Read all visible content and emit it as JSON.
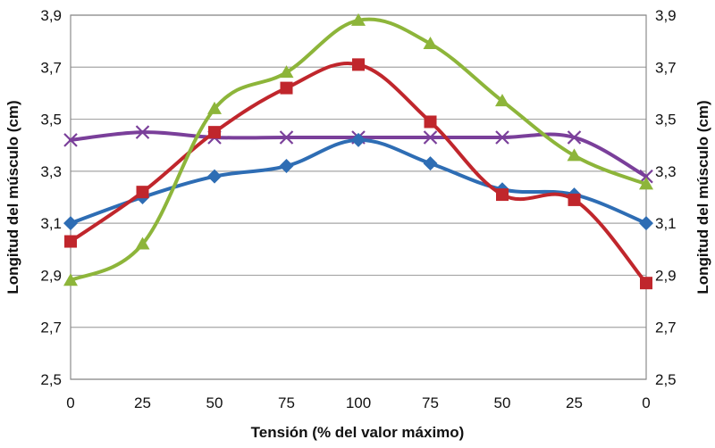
{
  "chart_data": {
    "type": "line",
    "title": "",
    "xlabel": "Tensión (% del valor máximo)",
    "ylabel": "Longitud del músculo (cm)",
    "ylabel_right": "Longitud del músculo (cm)",
    "categories": [
      "0",
      "25",
      "50",
      "75",
      "100",
      "75",
      "50",
      "25",
      "0"
    ],
    "ylim": [
      2.5,
      3.9
    ],
    "yticks": [
      "2,5",
      "2,7",
      "2,9",
      "3,1",
      "3,3",
      "3,5",
      "3,7",
      "3,9"
    ],
    "ytick_values": [
      2.5,
      2.7,
      2.9,
      3.1,
      3.3,
      3.5,
      3.7,
      3.9
    ],
    "grid": true,
    "legend": "none",
    "series": [
      {
        "name": "Serie azul",
        "marker": "diamond",
        "color": "#2e6db4",
        "values": [
          3.1,
          3.2,
          3.28,
          3.32,
          3.42,
          3.33,
          3.23,
          3.21,
          3.1
        ]
      },
      {
        "name": "Serie roja",
        "marker": "square",
        "color": "#c0262c",
        "values": [
          3.03,
          3.22,
          3.45,
          3.62,
          3.71,
          3.49,
          3.21,
          3.19,
          2.87
        ]
      },
      {
        "name": "Serie verde",
        "marker": "triangle",
        "color": "#8db53a",
        "values": [
          2.88,
          3.02,
          3.54,
          3.68,
          3.88,
          3.79,
          3.57,
          3.36,
          3.25
        ]
      },
      {
        "name": "Serie morada",
        "marker": "x",
        "color": "#7a3f9a",
        "values": [
          3.42,
          3.45,
          3.43,
          3.43,
          3.43,
          3.43,
          3.43,
          3.43,
          3.28
        ]
      }
    ]
  }
}
